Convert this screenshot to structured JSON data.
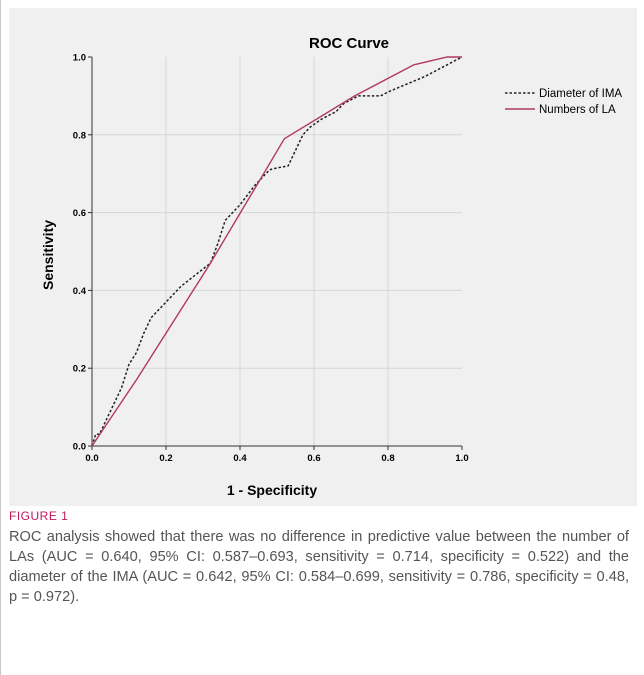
{
  "chart_data": {
    "type": "line",
    "title": "ROC Curve",
    "xlabel": "1 - Specificity",
    "ylabel": "Sensitivity",
    "xlim": [
      0,
      1
    ],
    "ylim": [
      0,
      1
    ],
    "xticks": [
      "0.0",
      "0.2",
      "0.4",
      "0.6",
      "0.8",
      "1.0"
    ],
    "yticks": [
      "0.0",
      "0.2",
      "0.4",
      "0.6",
      "0.8",
      "1.0"
    ],
    "grid": true,
    "legend_position": "top-right outside",
    "series": [
      {
        "name": "Diameter of IMA",
        "style": "dotted",
        "color": "#222222",
        "x": [
          0,
          0.01,
          0.02,
          0.04,
          0.06,
          0.08,
          0.1,
          0.12,
          0.14,
          0.16,
          0.18,
          0.2,
          0.24,
          0.28,
          0.32,
          0.34,
          0.36,
          0.4,
          0.44,
          0.48,
          0.5,
          0.53,
          0.55,
          0.57,
          0.59,
          0.62,
          0.66,
          0.68,
          0.72,
          0.75,
          0.78,
          0.8,
          0.85,
          0.9,
          0.95,
          1.0
        ],
        "y": [
          0,
          0.03,
          0.03,
          0.07,
          0.11,
          0.15,
          0.21,
          0.24,
          0.29,
          0.33,
          0.35,
          0.37,
          0.41,
          0.44,
          0.47,
          0.52,
          0.58,
          0.62,
          0.67,
          0.71,
          0.715,
          0.72,
          0.76,
          0.8,
          0.82,
          0.84,
          0.86,
          0.88,
          0.9,
          0.9,
          0.9,
          0.91,
          0.93,
          0.95,
          0.975,
          1.0
        ]
      },
      {
        "name": "Numbers of LA",
        "style": "solid",
        "color": "#b03a5c",
        "x": [
          0,
          0.12,
          0.32,
          0.52,
          0.71,
          0.87,
          0.96,
          1.0
        ],
        "y": [
          0,
          0.17,
          0.47,
          0.79,
          0.9,
          0.98,
          1.0,
          1.0
        ]
      }
    ]
  },
  "figure": {
    "label": "FIGURE 1",
    "caption": "ROC analysis showed that there was no difference in predictive value between the number of LAs (AUC = 0.640, 95% CI: 0.587–0.693, sensitivity = 0.714, specificity = 0.522) and the diameter of the IMA (AUC = 0.642, 95% CI: 0.584–0.699, sensitivity = 0.786, specificity = 0.48, p = 0.972)."
  }
}
